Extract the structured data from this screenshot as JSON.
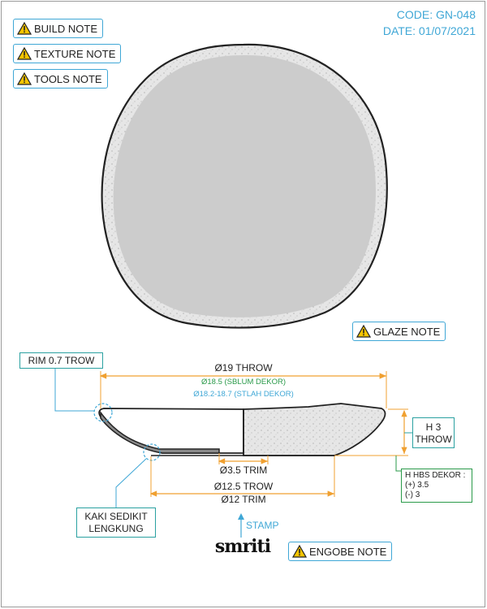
{
  "header": {
    "code": "CODE: GN-048",
    "date": "DATE: 01/07/2021"
  },
  "notes": {
    "build": "BUILD NOTE",
    "texture": "TEXTURE NOTE",
    "tools": "TOOLS NOTE",
    "glaze": "GLAZE NOTE",
    "engobe": "ENGOBE NOTE"
  },
  "dimensions": {
    "diameter_throw": "Ø19 THROW",
    "diameter_before_decor": "Ø18.5 (SBLUM DEKOR)",
    "diameter_after_decor": "Ø18.2-18.7 (STLAH DEKOR)",
    "trim_small": "Ø3.5 TRIM",
    "foot_throw": "Ø12.5 TROW",
    "foot_trim": "Ø12 TRIM",
    "height_throw_1": "H 3",
    "height_throw_2": "THROW",
    "height_decor_title": "H HBS DEKOR :",
    "height_decor_plus": "(+) 3.5",
    "height_decor_minus": "(-) 3"
  },
  "callouts": {
    "rim": "RIM 0.7 TROW",
    "foot_1": "KAKI SEDIKIT",
    "foot_2": "LENGKUNG",
    "stamp": "STAMP"
  },
  "logo": "smriti",
  "colors": {
    "accent_blue": "#3fa7d6",
    "dimension_orange": "#f0a030",
    "green_text": "#2a9a4a",
    "glaze_gray": "#cccccc"
  },
  "icons": [
    "warning-triangle-icon",
    "stamp-arrow-icon"
  ]
}
